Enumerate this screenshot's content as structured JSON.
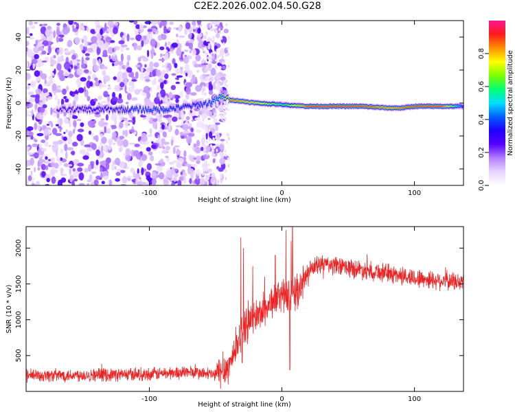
{
  "title": "C2E2.2026.002.04.50.G28",
  "chart_data": [
    {
      "type": "heatmap",
      "xlabel": "Height of straight line (km)",
      "ylabel": "Frequency (Hz)",
      "xlim": [
        -193,
        137
      ],
      "ylim": [
        -50,
        50
      ],
      "x_ticks": [
        -100,
        0,
        100
      ],
      "y_ticks": [
        -40,
        -20,
        0,
        20,
        40
      ],
      "colorbar": {
        "label": "Normalized spectral amplitude",
        "range": [
          0,
          1
        ],
        "ticks": [
          "0.0",
          "0.2",
          "0.4",
          "0.6",
          "0.8"
        ],
        "colormap": [
          "#ffffff",
          "#e8d4ff",
          "#b37dff",
          "#5500ff",
          "#1f00ff",
          "#0060ff",
          "#00e0ff",
          "#00ff70",
          "#7dff00",
          "#ffff00",
          "#ff9000",
          "#ff1a1a",
          "#ff1493"
        ]
      },
      "ridge": {
        "x": [
          -170,
          -150,
          -130,
          -110,
          -90,
          -70,
          -55,
          -45,
          -40,
          -30,
          -20,
          0,
          20,
          40,
          60,
          80,
          90,
          100,
          120,
          137
        ],
        "freq": [
          -4,
          -4,
          -4,
          -4,
          -4,
          -2,
          0,
          4,
          2,
          1,
          0,
          -1,
          -2,
          -2,
          -2,
          -3,
          -3,
          -2,
          -2,
          -2
        ],
        "amplitude": [
          0.3,
          0.35,
          0.35,
          0.45,
          0.45,
          0.4,
          0.45,
          0.65,
          0.9,
          0.85,
          0.8,
          0.6,
          0.95,
          0.95,
          0.95,
          0.85,
          0.9,
          0.95,
          0.95,
          0.4
        ]
      },
      "noise_region": [
        -193,
        -50
      ]
    },
    {
      "type": "line",
      "xlabel": "Height of straight line (km)",
      "ylabel": "SNR (10 * v/v)",
      "xlim": [
        -193,
        137
      ],
      "ylim": [
        0,
        2300
      ],
      "x_ticks": [
        -100,
        0,
        100
      ],
      "y_ticks": [
        500,
        1000,
        1500,
        2000
      ],
      "series_color": "#ee2222",
      "trend": {
        "x": [
          -193,
          -150,
          -100,
          -70,
          -50,
          -40,
          -33,
          -30,
          -25,
          -20,
          -15,
          -10,
          -5,
          0,
          5,
          10,
          15,
          20,
          25,
          30,
          40,
          60,
          80,
          100,
          120,
          137
        ],
        "y": [
          220,
          230,
          240,
          270,
          230,
          350,
          700,
          850,
          950,
          1050,
          1100,
          1200,
          1300,
          1350,
          1300,
          1350,
          1500,
          1650,
          1750,
          1780,
          1750,
          1700,
          1650,
          1580,
          1550,
          1520
        ]
      },
      "spikes": [
        {
          "x": -31,
          "y": 2150
        },
        {
          "x": -29,
          "y": 2000
        },
        {
          "x": -22,
          "y": 1750
        },
        {
          "x": -13,
          "y": 1600
        },
        {
          "x": -5,
          "y": 1900
        },
        {
          "x": 3,
          "y": 2250
        },
        {
          "x": 7,
          "y": 2100
        },
        {
          "x": 8,
          "y": 2300
        }
      ],
      "dips": [
        {
          "x": 6,
          "y": 300
        },
        {
          "x": -30,
          "y": 400
        }
      ]
    }
  ]
}
